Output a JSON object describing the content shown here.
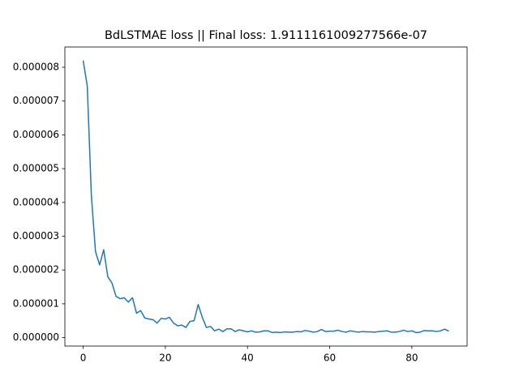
{
  "chart_data": {
    "type": "line",
    "title": "BdLSTMAE loss || Final loss: 1.9111161009277566e-07",
    "x": [
      0,
      1,
      2,
      3,
      4,
      5,
      6,
      7,
      8,
      9,
      10,
      11,
      12,
      13,
      14,
      15,
      16,
      17,
      18,
      19,
      20,
      21,
      22,
      23,
      24,
      25,
      26,
      27,
      28,
      29,
      30,
      31,
      32,
      33,
      34,
      35,
      36,
      37,
      38,
      39,
      40,
      41,
      42,
      43,
      44,
      45,
      46,
      47,
      48,
      49,
      50,
      51,
      52,
      53,
      54,
      55,
      56,
      57,
      58,
      59,
      60,
      61,
      62,
      63,
      64,
      65,
      66,
      67,
      68,
      69,
      70,
      71,
      72,
      73,
      74,
      75,
      76,
      77,
      78,
      79,
      80,
      81,
      82,
      83,
      84,
      85,
      86,
      87,
      88,
      89
    ],
    "series": [
      {
        "color": "#1f77b4",
        "values": [
          8.2e-06,
          7.45e-06,
          4.2e-06,
          2.55e-06,
          2.15e-06,
          2.6e-06,
          1.8e-06,
          1.62e-06,
          1.22e-06,
          1.15e-06,
          1.18e-06,
          1.05e-06,
          1.18e-06,
          7.2e-07,
          8e-07,
          5.8e-07,
          5.5e-07,
          5.3e-07,
          4.3e-07,
          5.7e-07,
          5.5e-07,
          6e-07,
          4.3e-07,
          3.5e-07,
          3.7e-07,
          3e-07,
          4.8e-07,
          5e-07,
          9.8e-07,
          6e-07,
          3e-07,
          3.3e-07,
          2e-07,
          2.5e-07,
          1.8e-07,
          2.6e-07,
          2.6e-07,
          1.8e-07,
          2.3e-07,
          2e-07,
          1.7e-07,
          2e-07,
          1.6e-07,
          1.7e-07,
          2e-07,
          2e-07,
          1.5e-07,
          1.6e-07,
          1.5e-07,
          1.7e-07,
          1.6e-07,
          1.6e-07,
          1.8e-07,
          1.7e-07,
          2.1e-07,
          1.9e-07,
          1.6e-07,
          1.8e-07,
          2.4e-07,
          1.8e-07,
          1.9e-07,
          1.9e-07,
          2.2e-07,
          1.8e-07,
          1.6e-07,
          2e-07,
          1.8e-07,
          1.6e-07,
          1.8e-07,
          1.7e-07,
          1.7e-07,
          1.6e-07,
          1.8e-07,
          1.9e-07,
          2e-07,
          1.6e-07,
          1.6e-07,
          1.8e-07,
          2.2e-07,
          1.8e-07,
          2e-07,
          1.5e-07,
          1.6e-07,
          2.1e-07,
          2e-07,
          2e-07,
          1.8e-07,
          2e-07,
          2.5e-07,
          1.911e-07
        ]
      }
    ],
    "xlim": [
      -4.45,
      93.45
    ],
    "ylim": [
      -2.5e-07,
      8.6e-06
    ],
    "xticks": [
      0,
      20,
      40,
      60,
      80
    ],
    "yticks": [
      {
        "value": 0,
        "label": "0.000000"
      },
      {
        "value": 1e-06,
        "label": "0.000001"
      },
      {
        "value": 2e-06,
        "label": "0.000002"
      },
      {
        "value": 3e-06,
        "label": "0.000003"
      },
      {
        "value": 4e-06,
        "label": "0.000004"
      },
      {
        "value": 5e-06,
        "label": "0.000005"
      },
      {
        "value": 6e-06,
        "label": "0.000006"
      },
      {
        "value": 7e-06,
        "label": "0.000007"
      },
      {
        "value": 8e-06,
        "label": "0.000008"
      }
    ],
    "grid": false
  }
}
